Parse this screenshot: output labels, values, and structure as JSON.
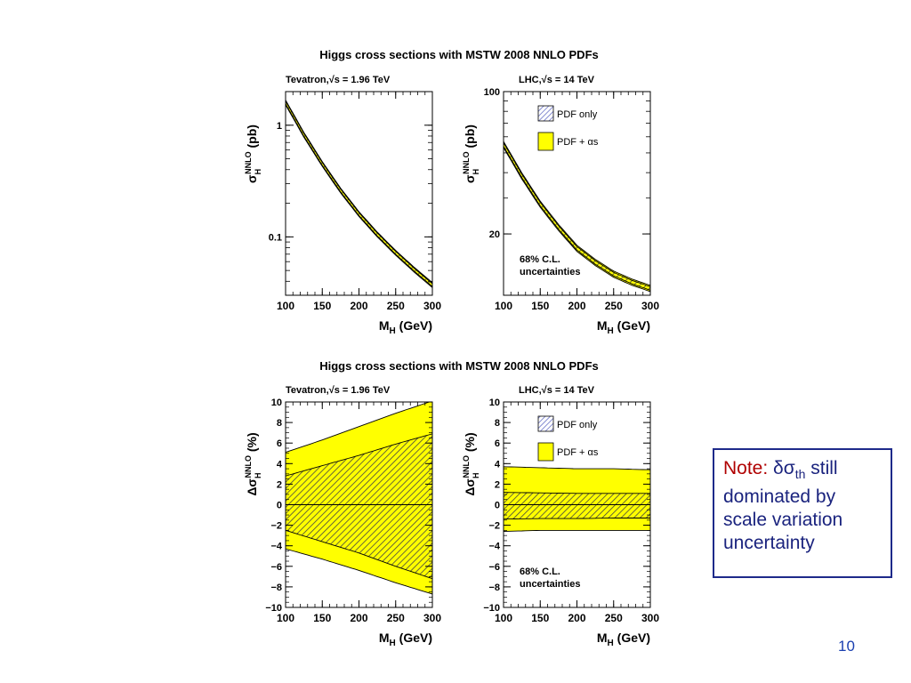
{
  "slide": {
    "note_label": "Note:",
    "note_symbol": "δσ",
    "note_sub": "th",
    "note_rest": "still dominated by scale variation uncertainty",
    "page_number": "10"
  },
  "colors": {
    "band_yellow": "#ffff00",
    "band_hatch": "#444444",
    "legend_hatch_blue": "#5560c0",
    "note_border": "#1e2a8a",
    "note_label": "#b00000",
    "note_text": "#1a237e",
    "page_number": "#1a3fb0"
  },
  "chart_data": [
    {
      "type": "area",
      "title": "Higgs cross sections with MSTW 2008 NNLO PDFs",
      "subtitle": "Tevatron,√s = 1.96 TeV",
      "ylabel": "σ_H^NNLO (pb)",
      "xlabel": "M_H (GeV)",
      "xlim": [
        100,
        300
      ],
      "ylim": [
        0.03,
        2
      ],
      "yscale": "log",
      "xticks": [
        100,
        150,
        200,
        250,
        300
      ],
      "yticks": [
        {
          "value": 1,
          "label": "1"
        },
        {
          "value": 0.1,
          "label": "0.1"
        }
      ],
      "x": [
        100,
        125,
        150,
        175,
        200,
        225,
        250,
        275,
        300
      ],
      "series": [
        {
          "name": "PDF + αs",
          "center": [
            1.6,
            0.82,
            0.45,
            0.26,
            0.16,
            0.105,
            0.072,
            0.051,
            0.037
          ],
          "rel_err_pct": 5
        },
        {
          "name": "PDF only",
          "center": [
            1.6,
            0.82,
            0.45,
            0.26,
            0.16,
            0.105,
            0.072,
            0.051,
            0.037
          ],
          "rel_err_pct": 3
        }
      ]
    },
    {
      "type": "area",
      "subtitle": "LHC,√s = 14 TeV",
      "ylabel": "σ_H^NNLO (pb)",
      "xlabel": "M_H (GeV)",
      "xlim": [
        100,
        300
      ],
      "ylim": [
        10,
        100
      ],
      "yscale": "log",
      "xticks": [
        100,
        150,
        200,
        250,
        300
      ],
      "yticks": [
        {
          "value": 100,
          "label": "100"
        },
        {
          "value": 20,
          "label": "20"
        }
      ],
      "x": [
        100,
        125,
        150,
        175,
        200,
        225,
        250,
        275,
        300
      ],
      "legend": [
        "PDF only",
        "PDF + αs"
      ],
      "annotation": [
        "68% C.L.",
        "uncertainties"
      ],
      "series": [
        {
          "name": "PDF + αs",
          "center": [
            55,
            38.5,
            28,
            21.5,
            17,
            14.5,
            12.7,
            11.6,
            10.8
          ],
          "rel_err_pct": 3.5
        },
        {
          "name": "PDF only",
          "center": [
            55,
            38.5,
            28,
            21.5,
            17,
            14.5,
            12.7,
            11.6,
            10.8
          ],
          "rel_err_pct": 2
        }
      ]
    },
    {
      "type": "area",
      "title": "Higgs cross sections with MSTW 2008 NNLO PDFs",
      "subtitle": "Tevatron,√s = 1.96 TeV",
      "ylabel": "Δσ_H^NNLO (%)",
      "xlabel": "M_H (GeV)",
      "xlim": [
        100,
        300
      ],
      "ylim": [
        -10,
        10
      ],
      "xticks": [
        100,
        150,
        200,
        250,
        300
      ],
      "yticks": [
        -10,
        -8,
        -6,
        -4,
        -2,
        0,
        2,
        4,
        6,
        8,
        10
      ],
      "x": [
        100,
        150,
        200,
        250,
        300
      ],
      "series": [
        {
          "name": "PDF + αs",
          "upper": [
            5.1,
            6.3,
            7.6,
            8.9,
            10.1
          ],
          "lower": [
            -4.3,
            -5.3,
            -6.4,
            -7.6,
            -8.7
          ]
        },
        {
          "name": "PDF only",
          "upper": [
            2.8,
            3.8,
            4.8,
            5.9,
            6.9
          ],
          "lower": [
            -2.5,
            -3.6,
            -4.7,
            -6.0,
            -7.2
          ]
        }
      ]
    },
    {
      "type": "area",
      "subtitle": "LHC,√s = 14 TeV",
      "ylabel": "Δσ_H^NNLO (%)",
      "xlabel": "M_H (GeV)",
      "xlim": [
        100,
        300
      ],
      "ylim": [
        -10,
        10
      ],
      "xticks": [
        100,
        150,
        200,
        250,
        300
      ],
      "yticks": [
        -10,
        -8,
        -6,
        -4,
        -2,
        0,
        2,
        4,
        6,
        8,
        10
      ],
      "x": [
        100,
        150,
        200,
        250,
        300
      ],
      "legend": [
        "PDF only",
        "PDF + αs"
      ],
      "annotation": [
        "68% C.L.",
        "uncertainties"
      ],
      "series": [
        {
          "name": "PDF + αs",
          "upper": [
            3.7,
            3.6,
            3.5,
            3.5,
            3.4
          ],
          "lower": [
            -2.6,
            -2.5,
            -2.5,
            -2.5,
            -2.5
          ]
        },
        {
          "name": "PDF only",
          "upper": [
            1.2,
            1.15,
            1.1,
            1.1,
            1.1
          ],
          "lower": [
            -1.4,
            -1.35,
            -1.35,
            -1.3,
            -1.3
          ]
        }
      ]
    }
  ]
}
